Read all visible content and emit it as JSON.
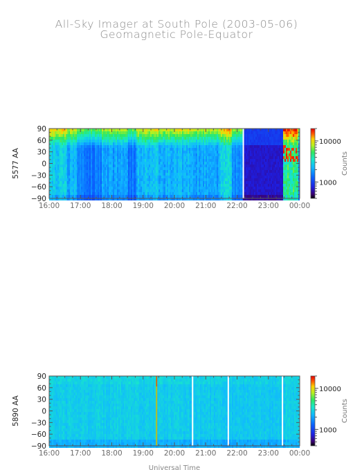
{
  "title": "All-Sky Imager at South Pole (2003-05-06)",
  "subtitle": "Geomagnetic Pole-Equator",
  "colors": {
    "axis": "#555555",
    "text": "#6b6b6b",
    "title": "#8a8a8a"
  },
  "chart_data": [
    {
      "type": "heatmap",
      "ylabel": "5577 AA",
      "xlabel": "",
      "x_ticks": [
        "16:00",
        "17:00",
        "18:00",
        "19:00",
        "20:00",
        "21:00",
        "22:00",
        "23:00",
        "00:00"
      ],
      "x_range_hours": [
        16,
        24
      ],
      "y_ticks": [
        "90",
        "60",
        "30",
        "0",
        "−30",
        "−60",
        "−90"
      ],
      "ylim": [
        -90,
        90
      ],
      "colorbar": {
        "label": "Counts",
        "ticks": [
          "10000",
          "1000"
        ],
        "tick_values": [
          10000,
          1000
        ],
        "range": [
          400,
          20000
        ],
        "scale": "log"
      },
      "activity": [
        {
          "from": 16.0,
          "to": 16.55,
          "level": 0.55
        },
        {
          "from": 16.55,
          "to": 16.9,
          "level": 0.45
        },
        {
          "from": 16.9,
          "to": 17.7,
          "level": 0.25
        },
        {
          "from": 17.7,
          "to": 18.5,
          "level": 0.4
        },
        {
          "from": 18.5,
          "to": 18.8,
          "level": 0.25
        },
        {
          "from": 18.8,
          "to": 19.5,
          "level": 0.5
        },
        {
          "from": 19.5,
          "to": 20.5,
          "level": 0.45
        },
        {
          "from": 20.5,
          "to": 21.0,
          "level": 0.42
        },
        {
          "from": 21.0,
          "to": 21.45,
          "level": 0.4
        },
        {
          "from": 21.45,
          "to": 21.85,
          "level": 0.6
        },
        {
          "from": 21.85,
          "to": 22.2,
          "level": 0.3
        },
        {
          "from": 22.2,
          "to": 23.45,
          "level": 0.08
        },
        {
          "from": 23.45,
          "to": 23.95,
          "level": 0.85
        },
        {
          "from": 23.95,
          "to": 24.0,
          "level": 0.3
        }
      ],
      "gaps_hours": [
        22.2
      ]
    },
    {
      "type": "heatmap",
      "ylabel": "5890 AA",
      "xlabel": "Universal Time",
      "x_ticks": [
        "16:00",
        "17:00",
        "18:00",
        "19:00",
        "20:00",
        "21:00",
        "22:00",
        "23:00",
        "00:00"
      ],
      "x_range_hours": [
        16,
        24
      ],
      "y_ticks": [
        "90",
        "60",
        "30",
        "0",
        "−30",
        "−60",
        "−90"
      ],
      "ylim": [
        -90,
        90
      ],
      "colorbar": {
        "label": "Counts",
        "ticks": [
          "10000",
          "1000"
        ],
        "tick_values": [
          10000,
          1000
        ],
        "range": [
          400,
          20000
        ],
        "scale": "log"
      },
      "activity": [
        {
          "from": 16.0,
          "to": 17.2,
          "level": 0.34
        },
        {
          "from": 17.2,
          "to": 19.0,
          "level": 0.36
        },
        {
          "from": 19.0,
          "to": 21.5,
          "level": 0.33
        },
        {
          "from": 21.5,
          "to": 23.5,
          "level": 0.3
        },
        {
          "from": 23.5,
          "to": 24.0,
          "level": 0.38
        }
      ],
      "gaps_hours": [
        20.58,
        21.72,
        23.45
      ],
      "spikes_hours": [
        19.43
      ]
    }
  ]
}
